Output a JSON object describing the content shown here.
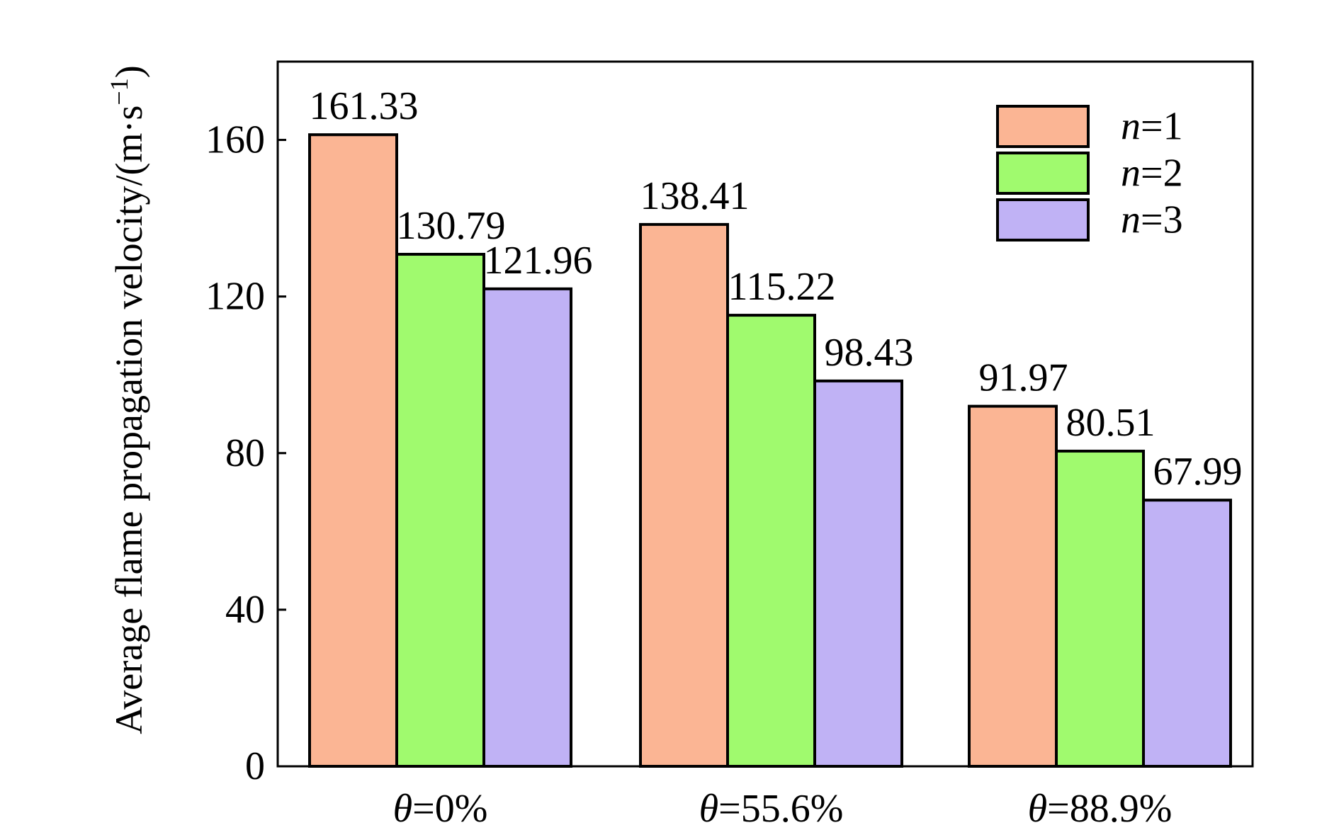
{
  "chart_data": {
    "type": "bar",
    "ylabel": "Average flame propagation velocity/(m·s",
    "ylabel_sup": "−1",
    "ylabel_close": ")",
    "ylim": [
      0,
      180
    ],
    "yticks": [
      "0",
      "40",
      "80",
      "120",
      "160"
    ],
    "ytick_values": [
      0,
      40,
      80,
      120,
      160
    ],
    "categories": [
      {
        "symbol": "θ",
        "value": "=0%"
      },
      {
        "symbol": "θ",
        "value": "=55.6%"
      },
      {
        "symbol": "θ",
        "value": "=88.9%"
      }
    ],
    "series": [
      {
        "name": "n=1",
        "var": "n",
        "eq": "=1",
        "color": "#fbb594",
        "values": [
          161.33,
          138.41,
          91.97
        ],
        "labels": [
          "161.33",
          "138.41",
          "91.97"
        ]
      },
      {
        "name": "n=2",
        "var": "n",
        "eq": "=2",
        "color": "#a0fa6e",
        "values": [
          130.79,
          115.22,
          80.51
        ],
        "labels": [
          "130.79",
          "115.22",
          "80.51"
        ]
      },
      {
        "name": "n=3",
        "var": "n",
        "eq": "=3",
        "color": "#c0b2f5",
        "values": [
          121.96,
          98.43,
          67.99
        ],
        "labels": [
          "121.96",
          "98.43",
          "67.99"
        ]
      }
    ],
    "legend_position": "top-right",
    "grid": false
  }
}
